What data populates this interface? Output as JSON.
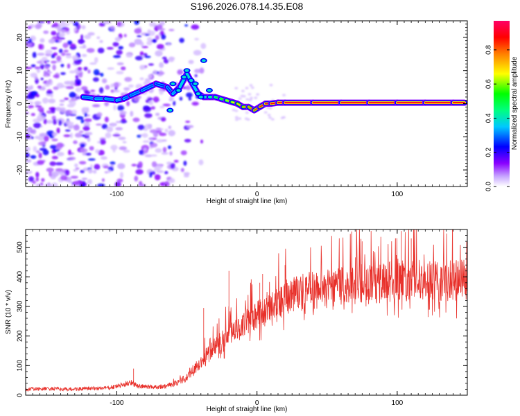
{
  "title": "S196.2026.078.14.35.E08",
  "chart_data": [
    {
      "type": "heatmap",
      "name": "spectrogram",
      "xlabel": "Height of straight line (km)",
      "ylabel": "Frequency (Hz)",
      "xlim": [
        -165,
        150
      ],
      "ylim": [
        -25,
        25
      ],
      "xticks": [
        -100,
        0,
        100
      ],
      "yticks": [
        -20,
        -10,
        0,
        10,
        20
      ],
      "xtick_labels": [
        "-100",
        "0",
        "100"
      ],
      "ytick_labels": [
        "-20",
        "-10",
        "0",
        "10",
        "20"
      ],
      "colorbar": {
        "label": "Normalized spectral amplitude",
        "range": [
          0,
          0.97
        ],
        "ticks": [
          0.0,
          0.2,
          0.4,
          0.6,
          0.8
        ],
        "tick_labels": [
          "0.0",
          "0.2",
          "0.4",
          "0.6",
          "0.8"
        ],
        "colors": [
          "#ffffff",
          "#8a00ff",
          "#0000ff",
          "#00e5ff",
          "#00ff00",
          "#ffff00",
          "#ff7f00",
          "#ff0000",
          "#ff0066"
        ]
      },
      "signal_track": {
        "x": [
          -124,
          -115,
          -108,
          -100,
          -95,
          -90,
          -82,
          -72,
          -64,
          -60,
          -55,
          -50,
          -46,
          -42,
          -38,
          -34,
          -30,
          -26,
          -22,
          -18,
          -14,
          -10,
          -6,
          -2,
          2,
          6,
          10,
          15,
          20,
          40,
          60,
          80,
          100,
          120,
          140,
          148
        ],
        "y": [
          2,
          1.5,
          1.5,
          1,
          1.5,
          2.5,
          4,
          6,
          5,
          3,
          5,
          9,
          6,
          3,
          2,
          2,
          2,
          1.5,
          1,
          0.5,
          0,
          -1,
          -1,
          -2,
          -1,
          0,
          0,
          0.3,
          0.3,
          0.3,
          0.3,
          0.3,
          0.3,
          0.3,
          0.3,
          0.3
        ],
        "amplitude": [
          0.28,
          0.32,
          0.3,
          0.33,
          0.3,
          0.28,
          0.3,
          0.26,
          0.25,
          0.3,
          0.35,
          0.42,
          0.4,
          0.35,
          0.4,
          0.42,
          0.5,
          0.55,
          0.6,
          0.68,
          0.72,
          0.75,
          0.78,
          0.82,
          0.85,
          0.88,
          0.9,
          0.92,
          0.93,
          0.93,
          0.93,
          0.93,
          0.93,
          0.93,
          0.92,
          0.9
        ]
      },
      "noise_region_x": [
        -165,
        -60
      ]
    },
    {
      "type": "line",
      "name": "snr",
      "xlabel": "Height of straight line (km)",
      "ylabel": "SNR (10 * v/v)",
      "xlim": [
        -165,
        150
      ],
      "ylim": [
        0,
        560
      ],
      "xticks": [
        -100,
        0,
        100
      ],
      "yticks": [
        0,
        100,
        200,
        300,
        400,
        500
      ],
      "xtick_labels": [
        "-100",
        "0",
        "100"
      ],
      "ytick_labels": [
        "0",
        "100",
        "200",
        "300",
        "400",
        "500"
      ],
      "color": "#e8302a",
      "series": [
        {
          "name": "SNR",
          "x": [
            -165,
            -150,
            -135,
            -120,
            -105,
            -95,
            -90,
            -85,
            -75,
            -65,
            -55,
            -50,
            -45,
            -40,
            -35,
            -30,
            -25,
            -20,
            -15,
            -10,
            -5,
            0,
            5,
            10,
            15,
            20,
            25,
            30,
            40,
            50,
            60,
            70,
            80,
            90,
            100,
            110,
            120,
            130,
            140,
            150
          ],
          "y": [
            20,
            22,
            20,
            22,
            25,
            35,
            45,
            30,
            28,
            30,
            45,
            60,
            90,
            110,
            140,
            165,
            185,
            200,
            220,
            240,
            255,
            270,
            290,
            305,
            320,
            330,
            335,
            345,
            355,
            360,
            370,
            375,
            375,
            380,
            385,
            385,
            388,
            385,
            388,
            390
          ]
        }
      ],
      "spikes": [
        {
          "x": -88,
          "y": 90
        },
        {
          "x": -38,
          "y": 295
        },
        {
          "x": -20,
          "y": 420
        },
        {
          "x": 2,
          "y": 380
        },
        {
          "x": 4,
          "y": 410
        },
        {
          "x": 20,
          "y": 440
        },
        {
          "x": 75,
          "y": 520
        },
        {
          "x": 103,
          "y": 555
        },
        {
          "x": 110,
          "y": 530
        }
      ]
    }
  ]
}
